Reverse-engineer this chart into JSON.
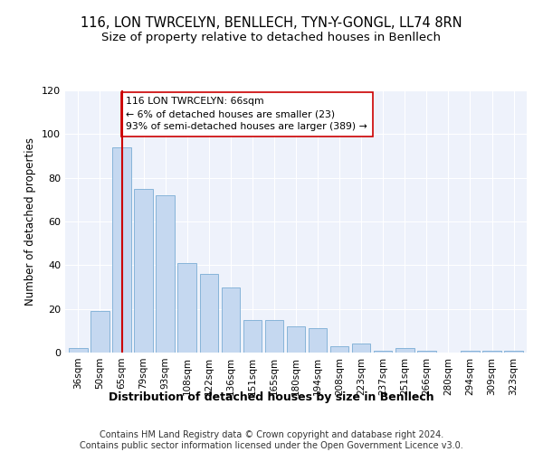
{
  "title1": "116, LON TWRCELYN, BENLLECH, TYN-Y-GONGL, LL74 8RN",
  "title2": "Size of property relative to detached houses in Benllech",
  "xlabel": "Distribution of detached houses by size in Benllech",
  "ylabel": "Number of detached properties",
  "categories": [
    "36sqm",
    "50sqm",
    "65sqm",
    "79sqm",
    "93sqm",
    "108sqm",
    "122sqm",
    "136sqm",
    "151sqm",
    "165sqm",
    "180sqm",
    "194sqm",
    "208sqm",
    "223sqm",
    "237sqm",
    "251sqm",
    "266sqm",
    "280sqm",
    "294sqm",
    "309sqm",
    "323sqm"
  ],
  "values": [
    2,
    19,
    94,
    75,
    72,
    41,
    36,
    30,
    15,
    15,
    12,
    11,
    3,
    4,
    1,
    2,
    1,
    0,
    1,
    1,
    1
  ],
  "bar_color": "#c5d8f0",
  "bar_edge_color": "#7aadd4",
  "vline_x": 2,
  "vline_color": "#cc0000",
  "annotation_text": "116 LON TWRCELYN: 66sqm\n← 6% of detached houses are smaller (23)\n93% of semi-detached houses are larger (389) →",
  "annotation_box_color": "#ffffff",
  "annotation_box_edge": "#cc0000",
  "ylim": [
    0,
    120
  ],
  "yticks": [
    0,
    20,
    40,
    60,
    80,
    100,
    120
  ],
  "bg_color": "#eef2fb",
  "footer": "Contains HM Land Registry data © Crown copyright and database right 2024.\nContains public sector information licensed under the Open Government Licence v3.0.",
  "title1_fontsize": 10.5,
  "title2_fontsize": 9.5,
  "xlabel_fontsize": 9,
  "ylabel_fontsize": 8.5,
  "annotation_fontsize": 7.8,
  "footer_fontsize": 7,
  "tick_fontsize": 7.5,
  "ytick_fontsize": 8
}
